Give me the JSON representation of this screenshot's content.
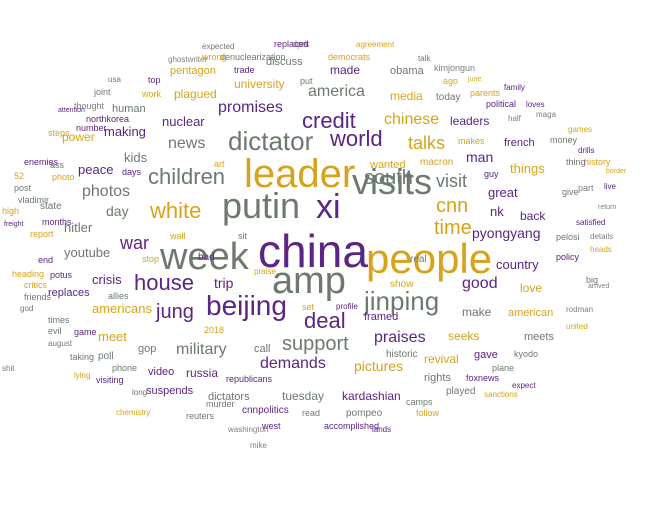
{
  "palette": {
    "olive": "#6c7a6c",
    "gold": "#d8a31a",
    "purple": "#5c2483",
    "grey": "#7f7f7f"
  },
  "words": [
    {
      "text": "china",
      "color": "purple"
    },
    {
      "text": "people",
      "color": "gold"
    },
    {
      "text": "leader",
      "color": "gold"
    },
    {
      "text": "week",
      "color": "olive"
    },
    {
      "text": "putin",
      "color": "olive"
    },
    {
      "text": "xi",
      "color": "purple"
    },
    {
      "text": "visits",
      "color": "olive"
    },
    {
      "text": "amp",
      "color": "olive"
    },
    {
      "text": "beijing",
      "color": "purple"
    },
    {
      "text": "dictator",
      "color": "olive"
    },
    {
      "text": "jinping",
      "color": "olive"
    },
    {
      "text": "white",
      "color": "gold"
    },
    {
      "text": "children",
      "color": "olive"
    },
    {
      "text": "world",
      "color": "purple"
    },
    {
      "text": "south",
      "color": "olive"
    },
    {
      "text": "credit",
      "color": "purple"
    },
    {
      "text": "house",
      "color": "purple"
    },
    {
      "text": "jung",
      "color": "purple"
    },
    {
      "text": "deal",
      "color": "purple"
    },
    {
      "text": "support",
      "color": "olive"
    },
    {
      "text": "cnn",
      "color": "gold"
    },
    {
      "text": "time",
      "color": "gold"
    },
    {
      "text": "visit",
      "color": "olive"
    },
    {
      "text": "talks",
      "color": "gold"
    },
    {
      "text": "chinese",
      "color": "gold"
    },
    {
      "text": "america",
      "color": "olive"
    },
    {
      "text": "promises",
      "color": "purple"
    },
    {
      "text": "news",
      "color": "olive"
    },
    {
      "text": "photos",
      "color": "olive"
    },
    {
      "text": "war",
      "color": "purple"
    },
    {
      "text": "military",
      "color": "olive"
    },
    {
      "text": "praises",
      "color": "purple"
    },
    {
      "text": "demands",
      "color": "purple"
    },
    {
      "text": "good",
      "color": "purple"
    },
    {
      "text": "pyongyang",
      "color": "purple"
    },
    {
      "text": "trip",
      "color": "purple"
    },
    {
      "text": "nuclear",
      "color": "purple"
    },
    {
      "text": "media",
      "color": "gold"
    },
    {
      "text": "made",
      "color": "purple"
    },
    {
      "text": "university",
      "color": "gold"
    },
    {
      "text": "plagued",
      "color": "gold"
    },
    {
      "text": "pentagon",
      "color": "gold"
    },
    {
      "text": "discuss",
      "color": "olive"
    },
    {
      "text": "obama",
      "color": "olive"
    },
    {
      "text": "leaders",
      "color": "purple"
    },
    {
      "text": "man",
      "color": "purple"
    },
    {
      "text": "great",
      "color": "purple"
    },
    {
      "text": "nk",
      "color": "purple"
    },
    {
      "text": "back",
      "color": "purple"
    },
    {
      "text": "things",
      "color": "gold"
    },
    {
      "text": "country",
      "color": "purple"
    },
    {
      "text": "love",
      "color": "gold"
    },
    {
      "text": "make",
      "color": "olive"
    },
    {
      "text": "seeks",
      "color": "gold"
    },
    {
      "text": "revival",
      "color": "gold"
    },
    {
      "text": "pictures",
      "color": "gold"
    },
    {
      "text": "kardashian",
      "color": "purple"
    },
    {
      "text": "tuesday",
      "color": "olive"
    },
    {
      "text": "meet",
      "color": "gold"
    },
    {
      "text": "americans",
      "color": "gold"
    },
    {
      "text": "crisis",
      "color": "purple"
    },
    {
      "text": "youtube",
      "color": "olive"
    },
    {
      "text": "hitler",
      "color": "olive"
    },
    {
      "text": "day",
      "color": "olive"
    },
    {
      "text": "making",
      "color": "purple"
    },
    {
      "text": "kids",
      "color": "olive"
    },
    {
      "text": "peace",
      "color": "purple"
    },
    {
      "text": "russia",
      "color": "purple"
    },
    {
      "text": "video",
      "color": "purple"
    },
    {
      "text": "gop",
      "color": "olive"
    },
    {
      "text": "call",
      "color": "olive"
    },
    {
      "text": "rights",
      "color": "olive"
    },
    {
      "text": "meets",
      "color": "olive"
    },
    {
      "text": "american",
      "color": "gold"
    },
    {
      "text": "dictators",
      "color": "olive"
    },
    {
      "text": "suspends",
      "color": "purple"
    },
    {
      "text": "cnnpolitics",
      "color": "purple"
    },
    {
      "text": "pompeo",
      "color": "olive"
    },
    {
      "text": "framed",
      "color": "purple"
    },
    {
      "text": "real",
      "color": "olive"
    },
    {
      "text": "bad",
      "color": "purple"
    },
    {
      "text": "state",
      "color": "olive"
    },
    {
      "text": "replaces",
      "color": "purple"
    },
    {
      "text": "power",
      "color": "gold"
    },
    {
      "text": "human",
      "color": "olive"
    },
    {
      "text": "today",
      "color": "olive"
    },
    {
      "text": "french",
      "color": "purple"
    },
    {
      "text": "show",
      "color": "gold"
    },
    {
      "text": "historic",
      "color": "olive"
    },
    {
      "text": "gave",
      "color": "purple"
    },
    {
      "text": "played",
      "color": "olive"
    },
    {
      "text": "foxnews",
      "color": "purple"
    },
    {
      "text": "kyodo",
      "color": "olive"
    },
    {
      "text": "plane",
      "color": "olive"
    },
    {
      "text": "policy",
      "color": "purple"
    },
    {
      "text": "big",
      "color": "olive"
    },
    {
      "text": "give",
      "color": "olive"
    },
    {
      "text": "pelosi",
      "color": "olive"
    },
    {
      "text": "satisfied",
      "color": "purple"
    },
    {
      "text": "wanted",
      "color": "gold"
    },
    {
      "text": "macron",
      "color": "gold"
    },
    {
      "text": "guy",
      "color": "purple"
    },
    {
      "text": "art",
      "color": "gold"
    },
    {
      "text": "wall",
      "color": "gold"
    },
    {
      "text": "sit",
      "color": "olive"
    },
    {
      "text": "stop",
      "color": "gold"
    },
    {
      "text": "potus",
      "color": "purple"
    },
    {
      "text": "allies",
      "color": "olive"
    },
    {
      "text": "end",
      "color": "purple"
    },
    {
      "text": "report",
      "color": "gold"
    },
    {
      "text": "game",
      "color": "purple"
    },
    {
      "text": "poll",
      "color": "olive"
    },
    {
      "text": "phone",
      "color": "olive"
    },
    {
      "text": "visiting",
      "color": "purple"
    },
    {
      "text": "republicans",
      "color": "purple"
    },
    {
      "text": "2018",
      "color": "gold"
    },
    {
      "text": "reuters",
      "color": "olive"
    },
    {
      "text": "murder",
      "color": "olive"
    },
    {
      "text": "read",
      "color": "olive"
    },
    {
      "text": "west",
      "color": "purple"
    },
    {
      "text": "accomplished",
      "color": "purple"
    },
    {
      "text": "follow",
      "color": "gold"
    },
    {
      "text": "camps",
      "color": "olive"
    },
    {
      "text": "lands",
      "color": "purple"
    },
    {
      "text": "washington",
      "color": "grey"
    },
    {
      "text": "mike",
      "color": "grey"
    },
    {
      "text": "chemistry",
      "color": "gold"
    },
    {
      "text": "sanctions",
      "color": "gold"
    },
    {
      "text": "expect",
      "color": "purple"
    },
    {
      "text": "united",
      "color": "gold"
    },
    {
      "text": "rodman",
      "color": "grey"
    },
    {
      "text": "arrived",
      "color": "grey"
    },
    {
      "text": "heads",
      "color": "gold"
    },
    {
      "text": "details",
      "color": "grey"
    },
    {
      "text": "return",
      "color": "grey"
    },
    {
      "text": "part",
      "color": "grey"
    },
    {
      "text": "border",
      "color": "gold"
    },
    {
      "text": "history",
      "color": "gold"
    },
    {
      "text": "drills",
      "color": "purple"
    },
    {
      "text": "thing",
      "color": "olive"
    },
    {
      "text": "money",
      "color": "olive"
    },
    {
      "text": "loves",
      "color": "purple"
    },
    {
      "text": "games",
      "color": "gold"
    },
    {
      "text": "maga",
      "color": "grey"
    },
    {
      "text": "half",
      "color": "grey"
    },
    {
      "text": "makes",
      "color": "gold"
    },
    {
      "text": "political",
      "color": "purple"
    },
    {
      "text": "parents",
      "color": "gold"
    },
    {
      "text": "family",
      "color": "purple"
    },
    {
      "text": "june",
      "color": "gold"
    },
    {
      "text": "ago",
      "color": "gold"
    },
    {
      "text": "kimjongun",
      "color": "grey"
    },
    {
      "text": "talk",
      "color": "olive"
    },
    {
      "text": "agreement",
      "color": "gold"
    },
    {
      "text": "dprk",
      "color": "grey"
    },
    {
      "text": "replaced",
      "color": "purple"
    },
    {
      "text": "democrats",
      "color": "gold"
    },
    {
      "text": "put",
      "color": "olive"
    },
    {
      "text": "denuclearization",
      "color": "olive"
    },
    {
      "text": "trade",
      "color": "purple"
    },
    {
      "text": "expected",
      "color": "olive"
    },
    {
      "text": "wrong",
      "color": "gold"
    },
    {
      "text": "ghostwriter",
      "color": "grey"
    },
    {
      "text": "top",
      "color": "purple"
    },
    {
      "text": "days",
      "color": "purple"
    },
    {
      "text": "work",
      "color": "gold"
    },
    {
      "text": "usa",
      "color": "olive"
    },
    {
      "text": "joint",
      "color": "olive"
    },
    {
      "text": "thought",
      "color": "grey"
    },
    {
      "text": "northkorea",
      "color": "purple"
    },
    {
      "text": "number",
      "color": "purple"
    },
    {
      "text": "steps",
      "color": "gold"
    },
    {
      "text": "attention",
      "color": "purple"
    },
    {
      "text": "enemies",
      "color": "purple"
    },
    {
      "text": "ass",
      "color": "olive"
    },
    {
      "text": "52",
      "color": "gold"
    },
    {
      "text": "photo",
      "color": "gold"
    },
    {
      "text": "post",
      "color": "olive"
    },
    {
      "text": "vladimir",
      "color": "olive"
    },
    {
      "text": "high",
      "color": "gold"
    },
    {
      "text": "freight",
      "color": "purple"
    },
    {
      "text": "months",
      "color": "purple"
    },
    {
      "text": "heading",
      "color": "gold"
    },
    {
      "text": "critics",
      "color": "gold"
    },
    {
      "text": "friends",
      "color": "olive"
    },
    {
      "text": "god",
      "color": "olive"
    },
    {
      "text": "times",
      "color": "olive"
    },
    {
      "text": "evil",
      "color": "olive"
    },
    {
      "text": "august",
      "color": "olive"
    },
    {
      "text": "taking",
      "color": "olive"
    },
    {
      "text": "shit",
      "color": "olive"
    },
    {
      "text": "lying",
      "color": "gold"
    },
    {
      "text": "long",
      "color": "olive"
    },
    {
      "text": "praise",
      "color": "gold"
    },
    {
      "text": "profile",
      "color": "purple"
    },
    {
      "text": "set",
      "color": "gold"
    },
    {
      "text": "live",
      "color": "purple"
    },
    {
      "text": "mr",
      "color": "gold"
    },
    {
      "text": "met",
      "color": "gold"
    },
    {
      "text": "fuck",
      "color": "gold"
    }
  ]
}
